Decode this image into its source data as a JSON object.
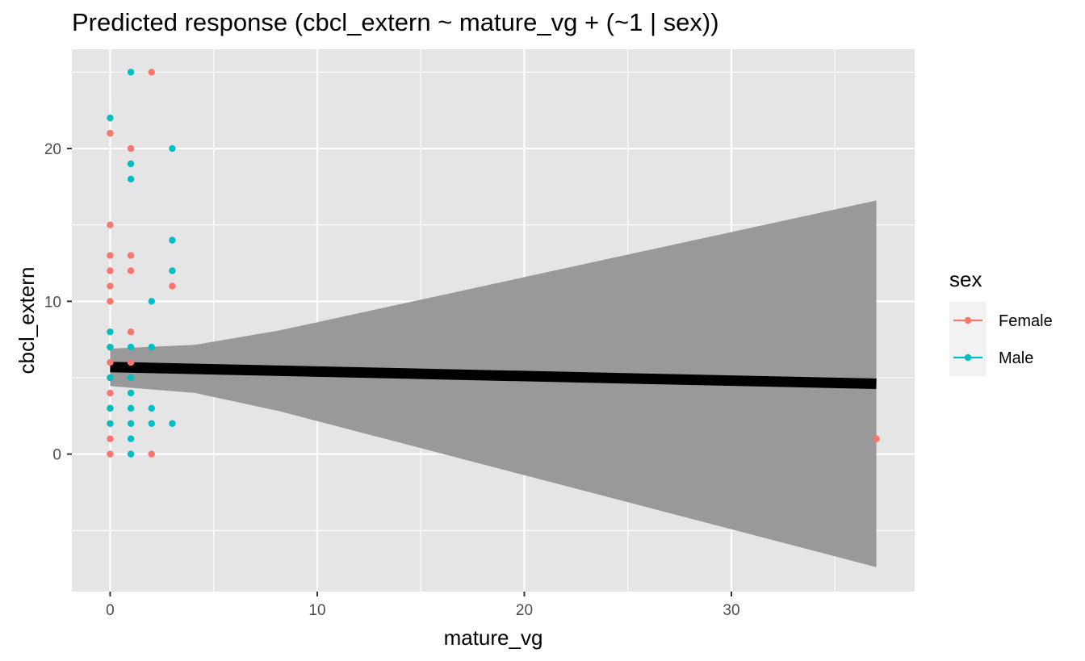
{
  "chart_data": {
    "type": "scatter",
    "title": "Predicted response (cbcl_extern ~ mature_vg + (~1 | sex))",
    "xlabel": "mature_vg",
    "ylabel": "cbcl_extern",
    "xlim": [
      -1.85,
      38.85
    ],
    "ylim": [
      -9,
      26.5
    ],
    "x_ticks": [
      0,
      10,
      20,
      30
    ],
    "y_ticks": [
      0,
      10,
      20
    ],
    "x_minor": [
      5,
      15,
      25,
      35
    ],
    "y_minor": [
      -5,
      5,
      15,
      25
    ],
    "grid": true,
    "legend": {
      "title": "sex",
      "position": "right"
    },
    "series": [
      {
        "name": "Female",
        "color": "#F8766D",
        "points": [
          [
            0,
            21
          ],
          [
            0,
            15
          ],
          [
            0,
            13
          ],
          [
            0,
            12
          ],
          [
            0,
            11
          ],
          [
            0,
            10
          ],
          [
            0,
            7
          ],
          [
            0,
            6
          ],
          [
            0,
            5
          ],
          [
            0,
            4
          ],
          [
            0,
            3
          ],
          [
            0,
            2
          ],
          [
            0,
            1
          ],
          [
            0,
            0
          ],
          [
            1,
            20
          ],
          [
            1,
            13
          ],
          [
            1,
            12
          ],
          [
            1,
            8
          ],
          [
            1,
            6
          ],
          [
            1,
            5
          ],
          [
            2,
            25
          ],
          [
            2,
            0
          ],
          [
            3,
            11
          ],
          [
            37,
            1
          ]
        ]
      },
      {
        "name": "Male",
        "color": "#00BFC4",
        "points": [
          [
            0,
            22
          ],
          [
            0,
            8
          ],
          [
            0,
            7
          ],
          [
            0,
            5
          ],
          [
            0,
            3
          ],
          [
            0,
            2
          ],
          [
            1,
            25
          ],
          [
            1,
            19
          ],
          [
            1,
            18
          ],
          [
            1,
            7
          ],
          [
            1,
            5
          ],
          [
            1,
            4
          ],
          [
            1,
            3
          ],
          [
            1,
            2
          ],
          [
            1,
            1
          ],
          [
            1,
            0
          ],
          [
            2,
            10
          ],
          [
            2,
            7
          ],
          [
            2,
            3
          ],
          [
            2,
            2
          ],
          [
            3,
            20
          ],
          [
            3,
            14
          ],
          [
            3,
            12
          ],
          [
            3,
            2
          ]
        ]
      }
    ],
    "fit_line": {
      "x": [
        0,
        37
      ],
      "y": [
        5.7,
        4.6
      ],
      "color": "#000000"
    },
    "confidence_band": {
      "color": "#999999",
      "x": [
        0,
        4.1,
        8.2,
        37
      ],
      "upper": [
        6.9,
        7.15,
        8.1,
        16.6
      ],
      "lower": [
        4.45,
        4.0,
        2.8,
        -7.4
      ]
    }
  }
}
